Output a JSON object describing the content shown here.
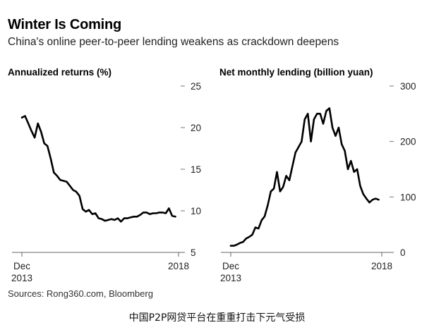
{
  "header": {
    "title": "Winter Is Coming",
    "subtitle": "China's online peer-to-peer lending weakens as crackdown deepens"
  },
  "footer": {
    "source": "Sources: Rong360.com, Bloomberg",
    "caption": "中国P2P网贷平台在重重打击下元气受损"
  },
  "chart_data": [
    {
      "type": "line",
      "title": "Annualized returns (%)",
      "xlabel": "",
      "ylabel": "",
      "x_ticks": [
        {
          "x": 0,
          "line1": "Dec",
          "line2": "2013"
        },
        {
          "x": 49,
          "line1": "2018",
          "line2": ""
        }
      ],
      "y_ticks": [
        5,
        10,
        15,
        20,
        25
      ],
      "ylim": [
        5,
        25
      ],
      "xlim": [
        0,
        49
      ],
      "grid": false,
      "y_axis_side": "right",
      "color": "#000000",
      "x": [
        0,
        1,
        2,
        3,
        4,
        5,
        6,
        7,
        8,
        9,
        10,
        11,
        12,
        13,
        14,
        15,
        16,
        17,
        18,
        19,
        20,
        21,
        22,
        23,
        24,
        25,
        26,
        27,
        28,
        29,
        30,
        31,
        32,
        33,
        34,
        35,
        36,
        37,
        38,
        39,
        40,
        41,
        42,
        43,
        44,
        45,
        46,
        47,
        48
      ],
      "values": [
        21.2,
        21.4,
        20.5,
        19.6,
        18.8,
        20.5,
        19.5,
        18.1,
        17.8,
        16.3,
        14.6,
        14.2,
        13.7,
        13.6,
        13.5,
        13.0,
        12.5,
        12.3,
        11.8,
        10.2,
        9.9,
        10.1,
        9.6,
        9.7,
        9.1,
        9.0,
        8.8,
        8.9,
        9.0,
        8.9,
        9.1,
        8.7,
        9.1,
        9.1,
        9.2,
        9.3,
        9.3,
        9.5,
        9.8,
        9.8,
        9.6,
        9.7,
        9.7,
        9.8,
        9.8,
        9.7,
        10.3,
        9.4,
        9.3
      ]
    },
    {
      "type": "line",
      "title": "Net monthly lending (billion yuan)",
      "xlabel": "",
      "ylabel": "",
      "x_ticks": [
        {
          "x": 0,
          "line1": "Dec",
          "line2": "2013"
        },
        {
          "x": 49,
          "line1": "2018",
          "line2": ""
        }
      ],
      "y_ticks": [
        0,
        100,
        200,
        300
      ],
      "ylim": [
        0,
        300
      ],
      "xlim": [
        0,
        49
      ],
      "grid": false,
      "y_axis_side": "right",
      "color": "#000000",
      "x": [
        0,
        1,
        2,
        3,
        4,
        5,
        6,
        7,
        8,
        9,
        10,
        11,
        12,
        13,
        14,
        15,
        16,
        17,
        18,
        19,
        20,
        21,
        22,
        23,
        24,
        25,
        26,
        27,
        28,
        29,
        30,
        31,
        32,
        33,
        34,
        35,
        36,
        37,
        38,
        39,
        40,
        41,
        42,
        43,
        44,
        45,
        46,
        47,
        48
      ],
      "values": [
        12,
        12,
        14,
        17,
        19,
        25,
        28,
        32,
        45,
        43,
        58,
        65,
        85,
        110,
        115,
        145,
        110,
        118,
        138,
        130,
        155,
        180,
        190,
        200,
        240,
        250,
        200,
        240,
        250,
        250,
        232,
        255,
        260,
        225,
        210,
        225,
        195,
        183,
        150,
        165,
        145,
        150,
        120,
        105,
        97,
        90,
        95,
        97,
        95
      ]
    }
  ]
}
